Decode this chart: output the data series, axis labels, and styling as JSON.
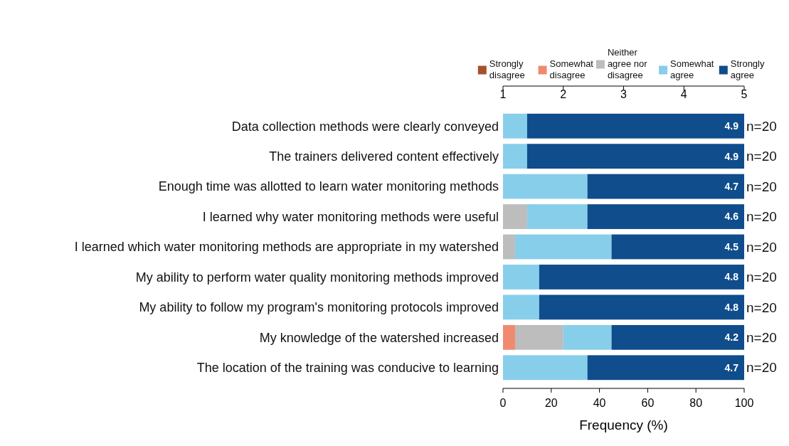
{
  "chart_data": {
    "type": "bar",
    "orientation": "horizontal",
    "stacked": true,
    "xlabel": "Frequency (%)",
    "categories": [
      "Data collection methods were clearly conveyed",
      "The trainers delivered content effectively",
      "Enough time was allotted to learn water monitoring methods",
      "I learned why water monitoring methods were useful",
      "I learned which water monitoring methods are appropriate in my watershed",
      "My ability to perform water quality monitoring methods improved",
      "My ability to follow my program's monitoring protocols improved",
      "My knowledge of the watershed increased",
      "The location of the training was conducive to learning"
    ],
    "series": [
      {
        "name": "Strongly disagree",
        "color": "#a3522e",
        "values": [
          0,
          0,
          0,
          0,
          0,
          0,
          0,
          0,
          0
        ]
      },
      {
        "name": "Somewhat disagree",
        "color": "#f08a6e",
        "values": [
          0,
          0,
          0,
          0,
          0,
          0,
          0,
          5,
          0
        ]
      },
      {
        "name": "Neither agree nor disagree",
        "color": "#bdbdbd",
        "values": [
          0,
          0,
          0,
          10,
          5,
          0,
          0,
          20,
          0
        ]
      },
      {
        "name": "Somewhat agree",
        "color": "#87ceeb",
        "values": [
          10,
          10,
          35,
          25,
          40,
          15,
          15,
          20,
          35
        ]
      },
      {
        "name": "Strongly agree",
        "color": "#0f4d8c",
        "values": [
          90,
          90,
          65,
          65,
          55,
          85,
          85,
          55,
          65
        ]
      }
    ],
    "xlim": [
      0,
      100
    ],
    "xticks": [
      0,
      20,
      40,
      60,
      80,
      100
    ],
    "x2lim": [
      1,
      5
    ],
    "x2ticks": [
      1,
      2,
      3,
      4,
      5
    ],
    "legend": "top",
    "grid": false,
    "annotations": [
      "4.9",
      "4.9",
      "4.7",
      "4.6",
      "4.5",
      "4.8",
      "4.8",
      "4.2",
      "4.7",
      "n=20",
      "n=20",
      "n=20",
      "n=20",
      "n=20",
      "n=20",
      "n=20",
      "n=20",
      "n=20"
    ]
  }
}
